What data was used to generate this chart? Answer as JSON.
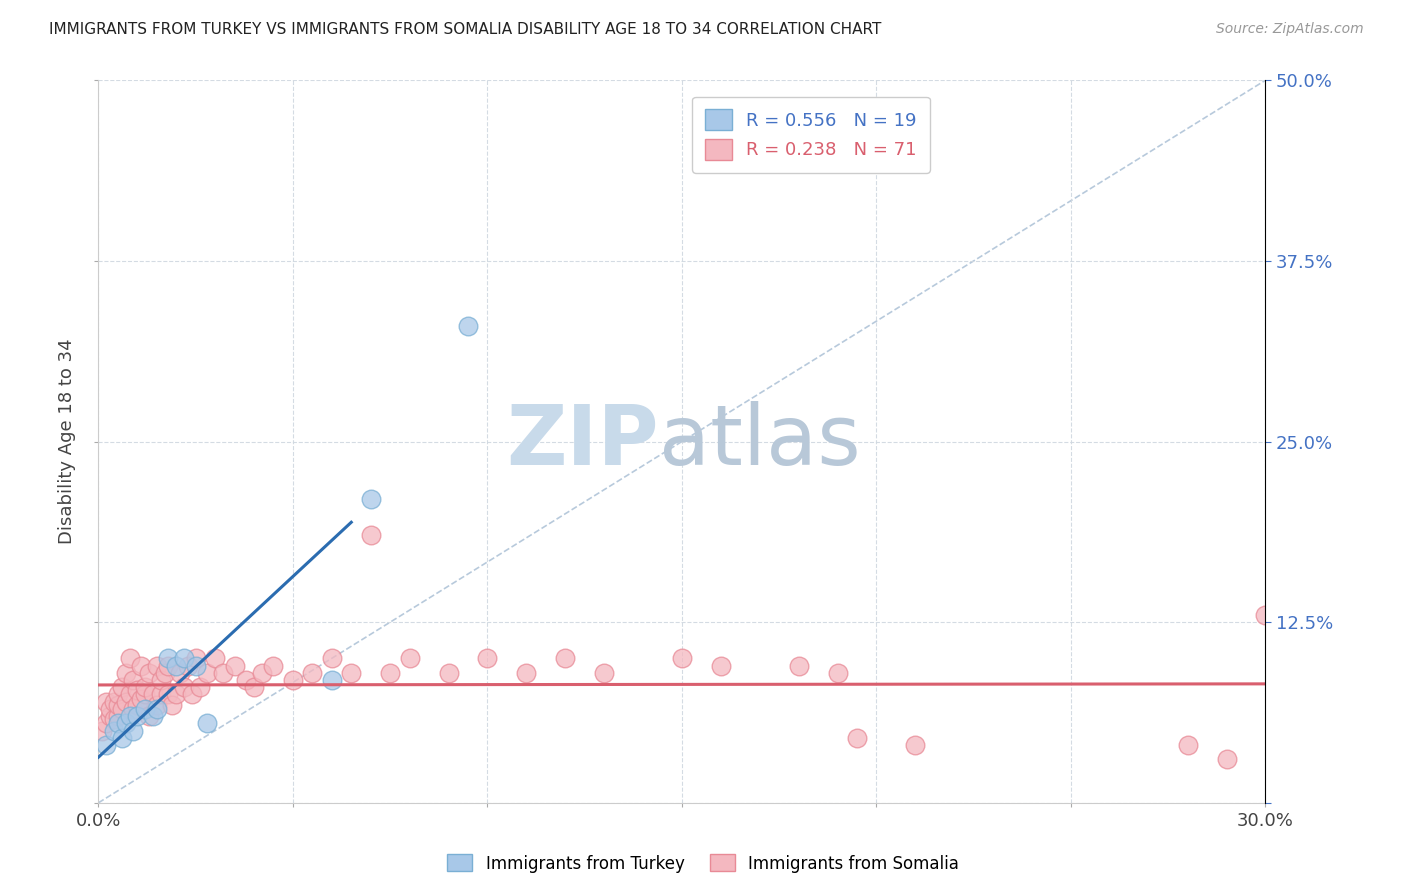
{
  "title": "IMMIGRANTS FROM TURKEY VS IMMIGRANTS FROM SOMALIA DISABILITY AGE 18 TO 34 CORRELATION CHART",
  "source": "Source: ZipAtlas.com",
  "ylabel": "Disability Age 18 to 34",
  "x_min": 0.0,
  "x_max": 0.3,
  "y_min": 0.0,
  "y_max": 0.5,
  "x_ticks": [
    0.0,
    0.05,
    0.1,
    0.15,
    0.2,
    0.25,
    0.3
  ],
  "x_tick_labels": [
    "0.0%",
    "",
    "",
    "",
    "",
    "",
    "30.0%"
  ],
  "y_ticks": [
    0.0,
    0.125,
    0.25,
    0.375,
    0.5
  ],
  "y_tick_labels": [
    "",
    "12.5%",
    "25.0%",
    "37.5%",
    "50.0%"
  ],
  "turkey_color": "#a8c8e8",
  "turkey_edge_color": "#7aafd4",
  "somalia_color": "#f4b8c0",
  "somalia_edge_color": "#e88a96",
  "turkey_line_color": "#2b6cb0",
  "somalia_line_color": "#d95f6e",
  "diag_color": "#b0c4d8",
  "turkey_R": 0.556,
  "turkey_N": 19,
  "somalia_R": 0.238,
  "somalia_N": 71,
  "watermark_zip_color": "#c8daea",
  "watermark_atlas_color": "#b8c8d8",
  "background_color": "#ffffff",
  "grid_color": "#d0d8e0",
  "turkey_scatter_x": [
    0.002,
    0.004,
    0.005,
    0.006,
    0.007,
    0.008,
    0.009,
    0.01,
    0.012,
    0.014,
    0.015,
    0.018,
    0.02,
    0.022,
    0.025,
    0.028,
    0.06,
    0.07,
    0.095
  ],
  "turkey_scatter_y": [
    0.04,
    0.05,
    0.055,
    0.045,
    0.055,
    0.06,
    0.05,
    0.06,
    0.065,
    0.06,
    0.065,
    0.1,
    0.095,
    0.1,
    0.095,
    0.055,
    0.085,
    0.21,
    0.33
  ],
  "somalia_scatter_x": [
    0.001,
    0.002,
    0.002,
    0.003,
    0.003,
    0.004,
    0.004,
    0.005,
    0.005,
    0.005,
    0.006,
    0.006,
    0.007,
    0.007,
    0.008,
    0.008,
    0.009,
    0.009,
    0.01,
    0.01,
    0.011,
    0.011,
    0.012,
    0.012,
    0.013,
    0.013,
    0.014,
    0.015,
    0.015,
    0.016,
    0.016,
    0.017,
    0.018,
    0.018,
    0.019,
    0.02,
    0.021,
    0.022,
    0.023,
    0.024,
    0.025,
    0.026,
    0.028,
    0.03,
    0.032,
    0.035,
    0.038,
    0.04,
    0.042,
    0.045,
    0.05,
    0.055,
    0.06,
    0.065,
    0.07,
    0.075,
    0.08,
    0.09,
    0.1,
    0.11,
    0.12,
    0.13,
    0.15,
    0.16,
    0.18,
    0.19,
    0.21,
    0.28,
    0.29,
    0.3,
    0.195
  ],
  "somalia_scatter_y": [
    0.05,
    0.055,
    0.07,
    0.06,
    0.065,
    0.058,
    0.07,
    0.06,
    0.068,
    0.075,
    0.065,
    0.08,
    0.07,
    0.09,
    0.075,
    0.1,
    0.065,
    0.085,
    0.068,
    0.078,
    0.072,
    0.095,
    0.075,
    0.08,
    0.06,
    0.09,
    0.075,
    0.068,
    0.095,
    0.075,
    0.085,
    0.09,
    0.075,
    0.095,
    0.068,
    0.075,
    0.09,
    0.08,
    0.095,
    0.075,
    0.1,
    0.08,
    0.09,
    0.1,
    0.09,
    0.095,
    0.085,
    0.08,
    0.09,
    0.095,
    0.085,
    0.09,
    0.1,
    0.09,
    0.185,
    0.09,
    0.1,
    0.09,
    0.1,
    0.09,
    0.1,
    0.09,
    0.1,
    0.095,
    0.095,
    0.09,
    0.04,
    0.04,
    0.03,
    0.13,
    0.045
  ]
}
